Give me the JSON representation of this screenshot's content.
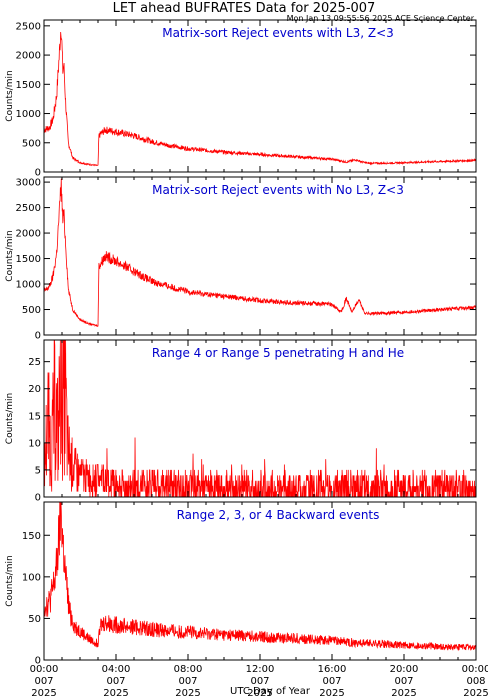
{
  "header": {
    "title": "LET ahead BUFRATES Data for 2025-007",
    "timestamp": "Mon Jan 13 09:55:56 2025 ACE Science Center"
  },
  "x_axis": {
    "label": "UTC Day of Year",
    "ticks": [
      {
        "time": "00:00",
        "day": "007",
        "year": "2025"
      },
      {
        "time": "04:00",
        "day": "007",
        "year": "2025"
      },
      {
        "time": "08:00",
        "day": "007",
        "year": "2025"
      },
      {
        "time": "12:00",
        "day": "007",
        "year": "2025"
      },
      {
        "time": "16:00",
        "day": "007",
        "year": "2025"
      },
      {
        "time": "20:00",
        "day": "007",
        "year": "2025"
      },
      {
        "time": "00:00",
        "day": "008",
        "year": "2025"
      }
    ]
  },
  "colors": {
    "line": "#ff0000",
    "panel_title": "#0000cc",
    "axes": "#000000"
  },
  "chart_data": [
    {
      "type": "line",
      "title": "Matrix-sort Reject events with L3, Z<3",
      "ylabel": "Counts/min",
      "ylim": [
        0,
        2600
      ],
      "yticks": [
        0,
        500,
        1000,
        1500,
        2000,
        2500
      ],
      "xlim": [
        0,
        24
      ],
      "series": [
        {
          "points": [
            [
              0,
              720
            ],
            [
              0.3,
              760
            ],
            [
              0.5,
              900
            ],
            [
              0.7,
              1300
            ],
            [
              0.85,
              2000
            ],
            [
              0.95,
              2550
            ],
            [
              1.05,
              1700
            ],
            [
              1.1,
              1850
            ],
            [
              1.2,
              1200
            ],
            [
              1.35,
              500
            ],
            [
              1.6,
              240
            ],
            [
              2,
              160
            ],
            [
              2.5,
              130
            ],
            [
              3,
              110
            ],
            [
              3.05,
              620
            ],
            [
              3.4,
              720
            ],
            [
              4,
              690
            ],
            [
              5,
              620
            ],
            [
              6,
              520
            ],
            [
              7,
              450
            ],
            [
              8,
              400
            ],
            [
              9,
              370
            ],
            [
              10,
              340
            ],
            [
              11,
              320
            ],
            [
              12,
              300
            ],
            [
              13,
              280
            ],
            [
              14,
              260
            ],
            [
              15,
              240
            ],
            [
              16,
              220
            ],
            [
              16.8,
              170
            ],
            [
              17.3,
              210
            ],
            [
              17.7,
              170
            ],
            [
              18,
              150
            ],
            [
              19,
              150
            ],
            [
              20,
              160
            ],
            [
              21,
              170
            ],
            [
              22,
              180
            ],
            [
              23,
              190
            ],
            [
              24,
              200
            ]
          ]
        }
      ]
    },
    {
      "type": "line",
      "title": "Matrix-sort Reject events with No L3, Z<3",
      "ylabel": "Counts/min",
      "ylim": [
        0,
        3100
      ],
      "yticks": [
        0,
        500,
        1000,
        1500,
        2000,
        2500,
        3000
      ],
      "xlim": [
        0,
        24
      ],
      "series": [
        {
          "points": [
            [
              0,
              850
            ],
            [
              0.3,
              950
            ],
            [
              0.5,
              1150
            ],
            [
              0.7,
              1600
            ],
            [
              0.85,
              2400
            ],
            [
              0.95,
              3000
            ],
            [
              1.05,
              2200
            ],
            [
              1.1,
              2400
            ],
            [
              1.2,
              1800
            ],
            [
              1.35,
              900
            ],
            [
              1.6,
              500
            ],
            [
              2,
              300
            ],
            [
              2.5,
              220
            ],
            [
              3,
              180
            ],
            [
              3.05,
              1350
            ],
            [
              3.4,
              1550
            ],
            [
              4,
              1450
            ],
            [
              5,
              1250
            ],
            [
              6,
              1050
            ],
            [
              7,
              950
            ],
            [
              8,
              850
            ],
            [
              9,
              800
            ],
            [
              10,
              760
            ],
            [
              11,
              720
            ],
            [
              12,
              680
            ],
            [
              13,
              650
            ],
            [
              14,
              630
            ],
            [
              15,
              620
            ],
            [
              16,
              600
            ],
            [
              16.5,
              450
            ],
            [
              16.8,
              720
            ],
            [
              17.1,
              450
            ],
            [
              17.5,
              690
            ],
            [
              17.8,
              440
            ],
            [
              18,
              420
            ],
            [
              19,
              430
            ],
            [
              20,
              450
            ],
            [
              21,
              470
            ],
            [
              22,
              500
            ],
            [
              23,
              520
            ],
            [
              24,
              540
            ]
          ]
        }
      ]
    },
    {
      "type": "line",
      "title": "Range 4 or Range 5 penetrating H and He",
      "ylabel": "Counts/min",
      "ylim": [
        0,
        29
      ],
      "yticks": [
        0,
        5,
        10,
        15,
        20,
        25
      ],
      "xlim": [
        0,
        24
      ],
      "series": [
        {
          "points": [
            [
              0,
              3
            ],
            [
              0.2,
              15
            ],
            [
              0.4,
              8
            ],
            [
              0.6,
              17
            ],
            [
              0.8,
              11
            ],
            [
              0.95,
              27
            ],
            [
              1.05,
              18
            ],
            [
              1.15,
              22
            ],
            [
              1.3,
              9
            ],
            [
              1.5,
              6
            ],
            [
              2,
              4
            ],
            [
              3,
              3
            ],
            [
              4,
              2
            ],
            [
              6,
              2
            ],
            [
              8,
              1.5
            ],
            [
              12,
              1.5
            ],
            [
              16,
              1.5
            ],
            [
              20,
              1.5
            ],
            [
              24,
              1.5
            ]
          ]
        }
      ]
    },
    {
      "type": "line",
      "title": "Range 2, 3, or 4 Backward events",
      "ylabel": "Counts/min",
      "ylim": [
        0,
        190
      ],
      "yticks": [
        0,
        50,
        100,
        150
      ],
      "xlim": [
        0,
        24
      ],
      "series": [
        {
          "points": [
            [
              0,
              65
            ],
            [
              0.3,
              70
            ],
            [
              0.5,
              85
            ],
            [
              0.7,
              110
            ],
            [
              0.85,
              150
            ],
            [
              0.95,
              185
            ],
            [
              1.05,
              140
            ],
            [
              1.2,
              100
            ],
            [
              1.4,
              60
            ],
            [
              1.7,
              40
            ],
            [
              2,
              35
            ],
            [
              2.5,
              25
            ],
            [
              3,
              20
            ],
            [
              3.05,
              40
            ],
            [
              3.4,
              45
            ],
            [
              4,
              42
            ],
            [
              6,
              37
            ],
            [
              8,
              33
            ],
            [
              10,
              30
            ],
            [
              12,
              28
            ],
            [
              14,
              26
            ],
            [
              16,
              23
            ],
            [
              18,
              20
            ],
            [
              20,
              18
            ],
            [
              22,
              16
            ],
            [
              24,
              15
            ]
          ]
        }
      ]
    }
  ]
}
